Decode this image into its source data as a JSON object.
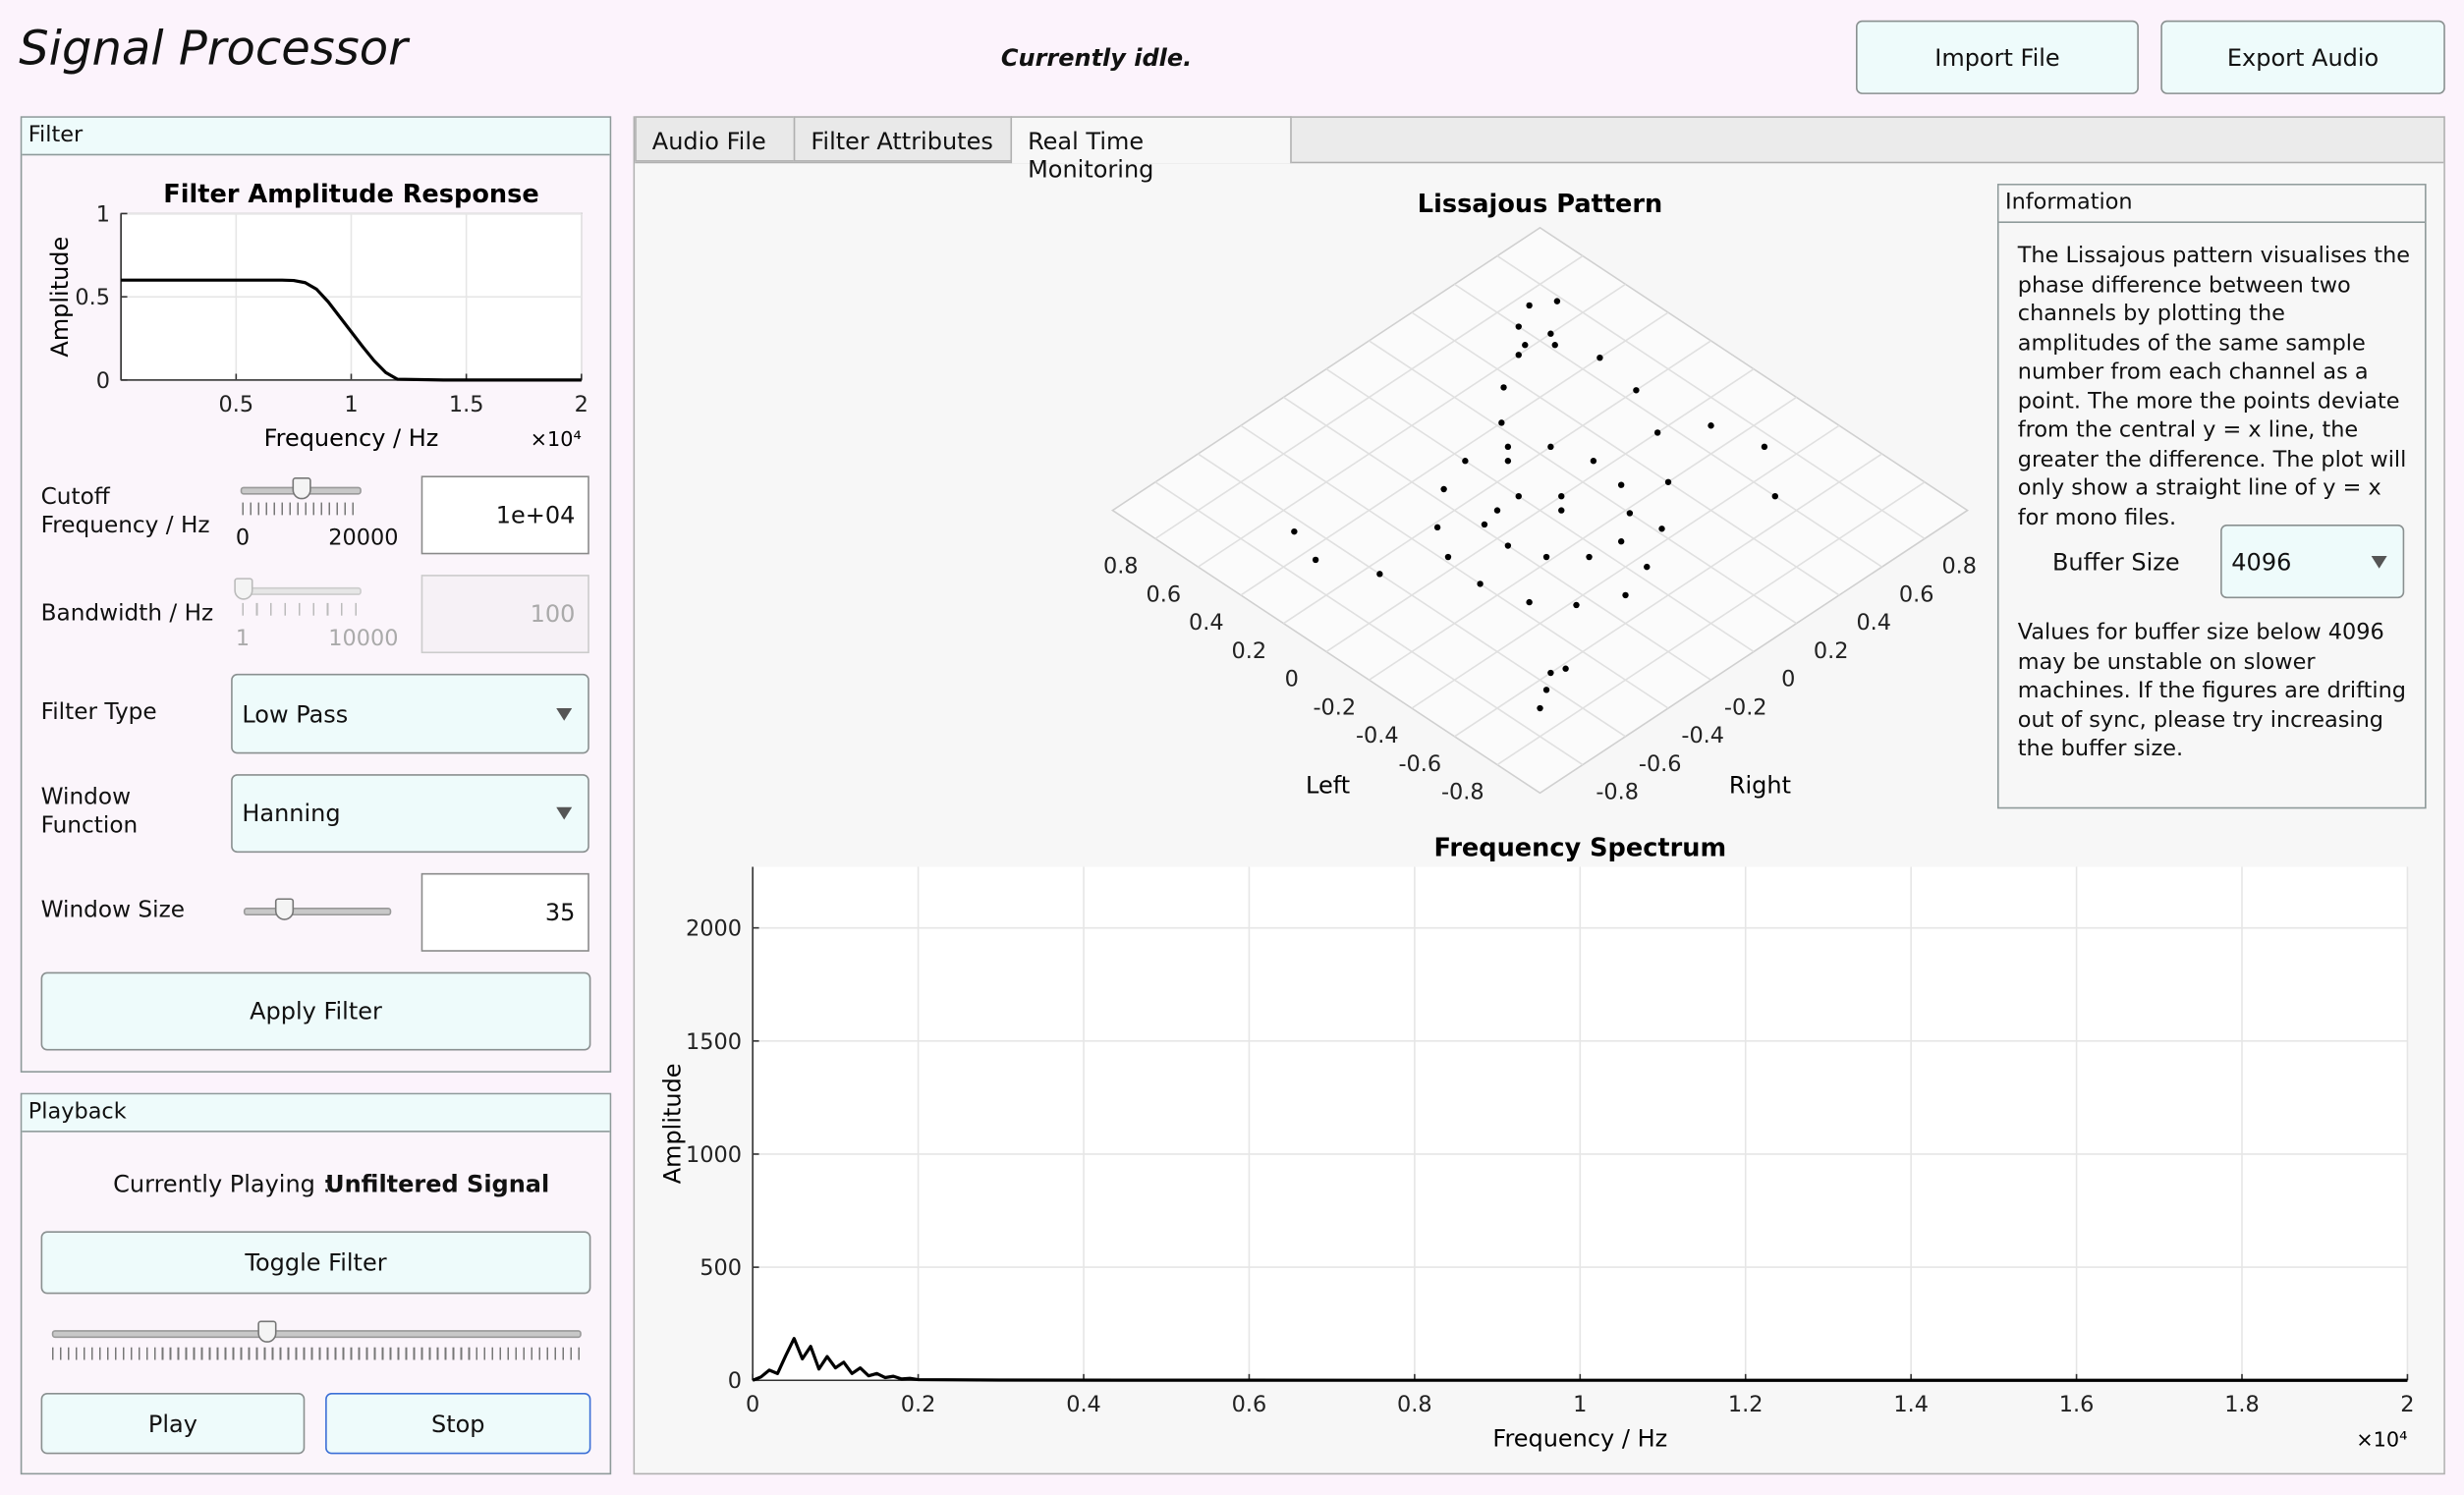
{
  "header": {
    "title": "Signal Processor",
    "status": "Currently idle.",
    "import_button": "Import File",
    "export_button": "Export Audio"
  },
  "filter_panel": {
    "title": "Filter",
    "chart": {
      "type": "line",
      "title": "Filter Amplitude Response",
      "x_label": "Frequency / Hz",
      "y_label": "Amplitude",
      "x_exponent": "×10⁴",
      "x": [
        0,
        2000,
        4000,
        6000,
        7000,
        7500,
        8000,
        8500,
        9000,
        9500,
        10000,
        10500,
        11000,
        11500,
        12000,
        14000,
        16000,
        18000,
        20000
      ],
      "values": [
        0.6,
        0.6,
        0.6,
        0.6,
        0.6,
        0.598,
        0.585,
        0.545,
        0.47,
        0.38,
        0.29,
        0.2,
        0.115,
        0.045,
        0.005,
        0,
        0,
        0,
        0
      ],
      "color": "#000000",
      "xlim": [
        0,
        20000
      ],
      "ylim": [
        0,
        1
      ],
      "xticks": [
        {
          "value": 5000,
          "label": "0.5"
        },
        {
          "value": 10000,
          "label": "1"
        },
        {
          "value": 15000,
          "label": "1.5"
        },
        {
          "value": 20000,
          "label": "2"
        }
      ],
      "yticks": [
        0,
        0.5,
        1
      ],
      "grid": true
    },
    "cutoff": {
      "label": [
        "Cutoff",
        "Frequency / Hz"
      ],
      "min": 0,
      "max": 20000,
      "value": 10000,
      "value_label": "1e+04"
    },
    "bandwidth": {
      "label": "Bandwidth / Hz",
      "min": 1,
      "max": 10000,
      "value": 100
    },
    "filter_type": {
      "label": "Filter Type",
      "value": "Low Pass"
    },
    "window_function": {
      "label": [
        "Window",
        "Function"
      ],
      "value": "Hanning"
    },
    "window_size": {
      "label": "Window Size",
      "value": 35
    },
    "apply_button": "Apply Filter"
  },
  "playback_panel": {
    "title": "Playback",
    "playing_label": "Currently Playing :",
    "playing_value": "Unfiltered Signal",
    "toggle_button": "Toggle Filter",
    "play_button": "Play",
    "stop_button": "Stop"
  },
  "tabs": {
    "items": [
      "Audio File",
      "Filter Attributes",
      "Real Time Monitoring"
    ],
    "selected": 2
  },
  "monitoring": {
    "lissajous": {
      "type": "scatter",
      "title": "Lissajous Pattern",
      "left_label": "Left",
      "right_label": "Right",
      "color": "#000000",
      "left": [
        0.1,
        0.25,
        0.4,
        0.52,
        0.6,
        0.55,
        0.4,
        0.2,
        0.0,
        -0.2,
        -0.35,
        -0.45,
        -0.5,
        -0.42,
        -0.3,
        -0.12,
        0.05,
        0.18,
        0.3,
        0.35,
        0.3,
        0.2,
        0.05,
        -0.1,
        -0.22,
        -0.3,
        -0.28,
        -0.18,
        -0.05,
        0.08,
        0.62,
        0.7,
        0.75,
        0.7,
        0.6,
        -0.6,
        -0.65,
        -0.7,
        -0.62,
        0.15,
        0.35,
        0.5,
        -0.1,
        -0.3,
        -0.5,
        0.0,
        0.1,
        -0.05
      ],
      "right": [
        0.0,
        0.1,
        0.22,
        0.35,
        0.5,
        0.62,
        0.68,
        0.65,
        0.55,
        0.4,
        0.22,
        0.05,
        -0.1,
        -0.25,
        -0.35,
        -0.4,
        -0.38,
        -0.3,
        -0.15,
        0.0,
        0.15,
        0.25,
        0.3,
        0.28,
        0.2,
        0.08,
        -0.05,
        -0.15,
        -0.2,
        -0.18,
        0.55,
        0.6,
        0.7,
        0.78,
        0.65,
        -0.55,
        -0.62,
        -0.7,
        -0.5,
        -0.6,
        -0.7,
        -0.65,
        0.7,
        0.75,
        0.6,
        0.1,
        -0.1,
        0.05
      ],
      "left_lim": [
        -1,
        1
      ],
      "right_lim": [
        -1,
        1
      ],
      "left_ticks": [
        -0.8,
        -0.6,
        -0.4,
        -0.2,
        0,
        0.2,
        0.4,
        0.6,
        0.8
      ],
      "right_ticks": [
        -0.8,
        -0.6,
        -0.4,
        -0.2,
        0,
        0.2,
        0.4,
        0.6,
        0.8
      ],
      "grid": true
    },
    "information": {
      "title": "Information",
      "text": "The Lissajous pattern visualises the phase difference between two channels by plotting the amplitudes of the same sample number from each channel as a point. The more the points deviate from the central y = x line, the greater the difference. The plot will only show a straight line of y = x for mono files.",
      "buffer_label": "Buffer Size",
      "buffer_value": "4096",
      "note": "Values for buffer size below 4096 may be unstable on slower machines. If the figures are drifting out of sync, please try increasing the buffer size."
    },
    "spectrum": {
      "type": "line",
      "title": "Frequency Spectrum",
      "x_label": "Frequency / Hz",
      "y_label": "Amplitude",
      "x_exponent": "×10⁴",
      "x": [
        0,
        100,
        200,
        300,
        400,
        500,
        600,
        700,
        800,
        900,
        1000,
        1100,
        1200,
        1300,
        1400,
        1500,
        1600,
        1700,
        1800,
        1900,
        2000,
        3000,
        5000,
        10000,
        20000
      ],
      "values": [
        0,
        15,
        45,
        30,
        110,
        185,
        95,
        150,
        50,
        105,
        55,
        80,
        30,
        55,
        20,
        30,
        12,
        18,
        6,
        9,
        3,
        1,
        0.5,
        0.2,
        0
      ],
      "color": "#000000",
      "xlim": [
        0,
        20000
      ],
      "ylim": [
        0,
        2270
      ],
      "xticks": [
        0,
        {
          "value": 2000,
          "label": "0.2"
        },
        {
          "value": 4000,
          "label": "0.4"
        },
        {
          "value": 6000,
          "label": "0.6"
        },
        {
          "value": 8000,
          "label": "0.8"
        },
        {
          "value": 10000,
          "label": "1"
        },
        {
          "value": 12000,
          "label": "1.2"
        },
        {
          "value": 14000,
          "label": "1.4"
        },
        {
          "value": 16000,
          "label": "1.6"
        },
        {
          "value": 18000,
          "label": "1.8"
        },
        {
          "value": 20000,
          "label": "2"
        }
      ],
      "yticks": [
        0,
        500,
        1000,
        1500,
        2000
      ],
      "grid": true
    }
  }
}
